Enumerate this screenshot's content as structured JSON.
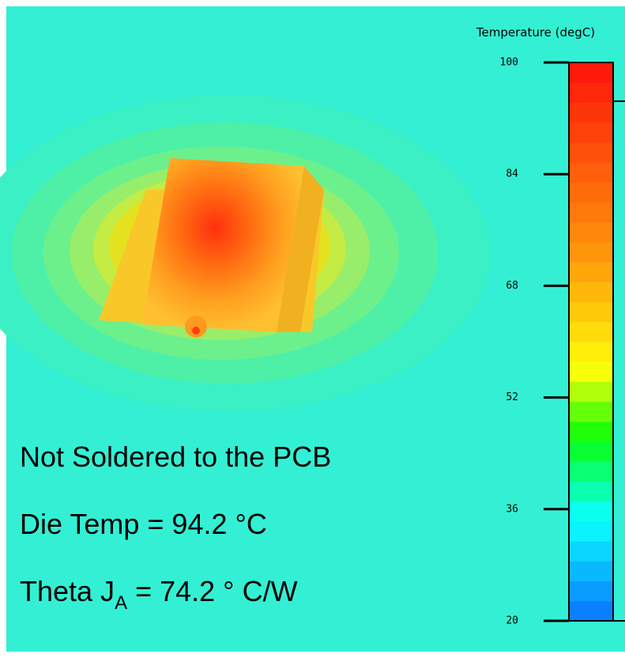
{
  "colorbar": {
    "title": "Temperature (degC)",
    "lim": [
      20,
      100
    ],
    "ticks": [
      100,
      84,
      68,
      52,
      36,
      20
    ]
  },
  "annotations": {
    "line1": "Not Soldered to the PCB",
    "line2": "Die Temp = 94.2 °C",
    "line3_main": "Theta J",
    "line3_sub": "A",
    "line3_rest": " = 74.2 ° C/W"
  }
}
